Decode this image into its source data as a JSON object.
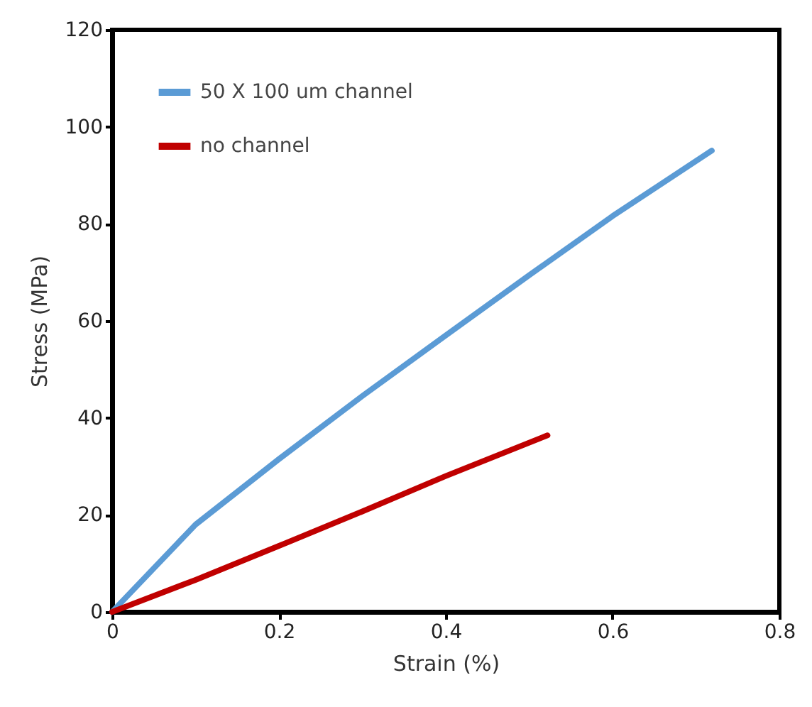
{
  "chart_data": {
    "type": "line",
    "xlabel": "Strain (%)",
    "ylabel": "Stress (MPa)",
    "xlim": [
      0,
      0.8
    ],
    "ylim": [
      0,
      120
    ],
    "xticks": [
      0,
      0.2,
      0.4,
      0.6,
      0.8
    ],
    "yticks": [
      0,
      20,
      40,
      60,
      80,
      100,
      120
    ],
    "grid": false,
    "legend": "top left",
    "marker": "none",
    "line_style": "solid",
    "series": [
      {
        "name": "50 X 100 um channel",
        "color": "#5b9bd5",
        "x": [
          0,
          0.05,
          0.1,
          0.2,
          0.3,
          0.4,
          0.5,
          0.6,
          0.719
        ],
        "values": [
          0,
          9,
          18,
          31.5,
          44.5,
          57,
          69.4,
          81.6,
          95.1
        ]
      },
      {
        "name": "no channel",
        "color": "#c00000",
        "x": [
          0,
          0.1,
          0.2,
          0.3,
          0.4,
          0.522
        ],
        "values": [
          0,
          6.6,
          13.6,
          20.7,
          28,
          36.4
        ]
      }
    ]
  }
}
